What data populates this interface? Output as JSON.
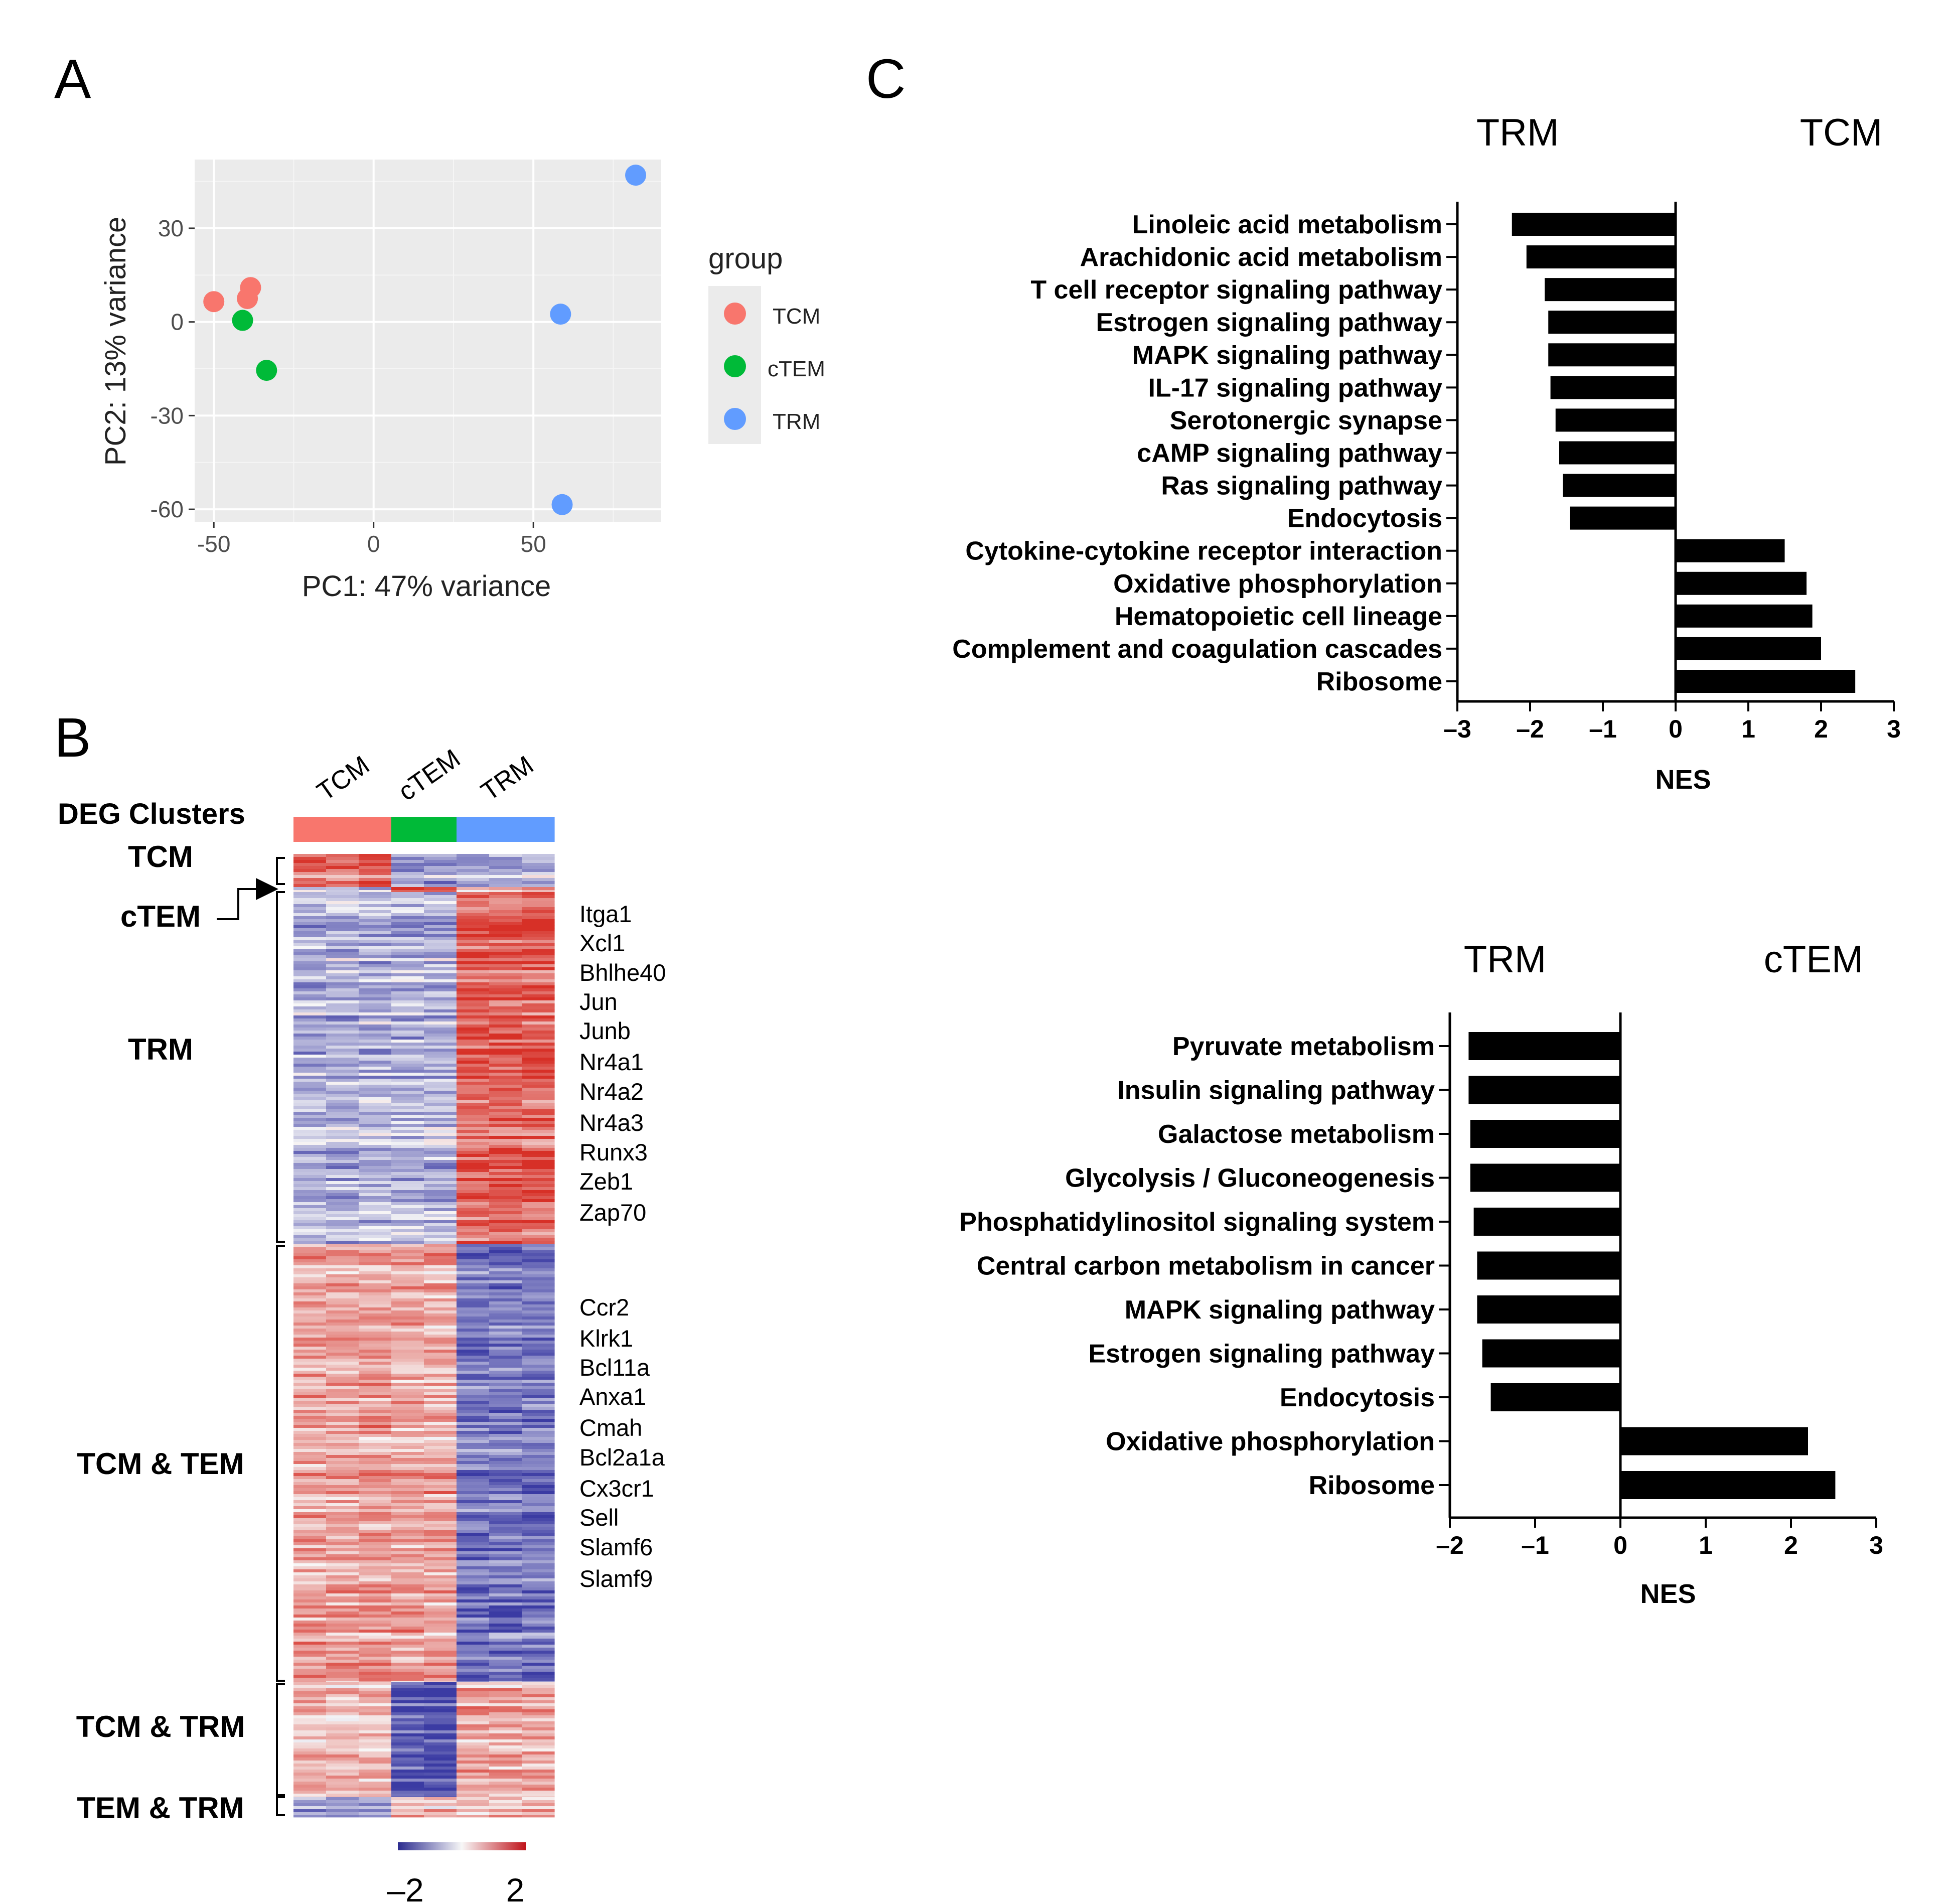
{
  "panels": {
    "a": "A",
    "b": "B",
    "c": "C"
  },
  "colors": {
    "tcm": "#F8766D",
    "ctem": "#00BA38",
    "trm": "#619CFF",
    "bar": "#000000",
    "panel_bg": "#EBEBEB",
    "heat_low": "#3B3BA3",
    "heat_high": "#D7301F"
  },
  "chart_data": [
    {
      "id": "pca",
      "type": "scatter",
      "xlabel": "PC1: 47% variance",
      "ylabel": "PC2: 13% variance",
      "xlim": [
        -56,
        90
      ],
      "ylim": [
        -64,
        52
      ],
      "xticks": [
        -50,
        0,
        50
      ],
      "yticks": [
        30,
        0,
        -30,
        -60
      ],
      "legend": {
        "title": "group",
        "position": "right",
        "entries": [
          "TCM",
          "cTEM",
          "TRM"
        ]
      },
      "series": [
        {
          "name": "TCM",
          "color": "#F8766D",
          "points": [
            [
              -50,
              6.5
            ],
            [
              -38.5,
              11
            ],
            [
              -39.5,
              7.5
            ]
          ]
        },
        {
          "name": "cTEM",
          "color": "#00BA38",
          "points": [
            [
              -41,
              0.5
            ],
            [
              -33.5,
              -15.5
            ]
          ]
        },
        {
          "name": "TRM",
          "color": "#619CFF",
          "points": [
            [
              82,
              47
            ],
            [
              58.5,
              2.5
            ],
            [
              59,
              -58.5
            ]
          ]
        }
      ]
    },
    {
      "id": "heatmap",
      "type": "heatmap",
      "row_label_title": "DEG Clusters",
      "column_groups": [
        {
          "name": "TCM",
          "color": "#F8766D",
          "n": 3
        },
        {
          "name": "cTEM",
          "color": "#00BA38",
          "n": 2
        },
        {
          "name": "TRM",
          "color": "#619CFF",
          "n": 3
        }
      ],
      "clusters": [
        {
          "name": "TCM",
          "genes": []
        },
        {
          "name": "cTEM",
          "genes": []
        },
        {
          "name": "TRM",
          "genes": [
            "Itga1",
            "Xcl1",
            "Bhlhe40",
            "Jun",
            "Junb",
            "Nr4a1",
            "Nr4a2",
            "Nr4a3",
            "Runx3",
            "Zeb1",
            "Zap70"
          ]
        },
        {
          "name": "TCM & TEM",
          "genes": [
            "Ccr2",
            "Klrk1",
            "Bcl11a",
            "Anxa1",
            "Cmah",
            "Bcl2a1a",
            "Cx3cr1",
            "Sell",
            "Slamf6",
            "Slamf9"
          ]
        },
        {
          "name": "TCM & TRM",
          "genes": []
        },
        {
          "name": "TEM & TRM",
          "genes": []
        }
      ],
      "colorscale": {
        "min": -2,
        "max": 2,
        "min_label": "–2",
        "max_label": "2"
      }
    },
    {
      "id": "gsea_trm_vs_tcm",
      "type": "bar",
      "orientation": "horizontal",
      "left_label": "TRM",
      "right_label": "TCM",
      "xlabel": "NES",
      "xlim": [
        -3,
        3
      ],
      "xticks": [
        -3,
        -2,
        -1,
        0,
        1,
        2,
        3
      ],
      "xtick_labels": [
        "–3",
        "–2",
        "–1",
        "0",
        "1",
        "2",
        "3"
      ],
      "categories": [
        "Linoleic acid metabolism",
        "Arachidonic acid metabolism",
        "T cell receptor signaling pathway",
        "Estrogen signaling pathway",
        "MAPK signaling pathway",
        "IL-17 signaling pathway",
        "Serotonergic synapse",
        "cAMP signaling pathway",
        "Ras signaling pathway",
        "Endocytosis",
        "Cytokine-cytokine receptor interaction",
        "Oxidative phosphorylation",
        "Hematopoietic cell lineage",
        "Complement and coagulation cascades",
        "Ribosome"
      ],
      "values": [
        -2.25,
        -2.05,
        -1.8,
        -1.75,
        -1.75,
        -1.72,
        -1.65,
        -1.6,
        -1.55,
        -1.45,
        1.5,
        1.8,
        1.88,
        2.0,
        2.47
      ]
    },
    {
      "id": "gsea_trm_vs_ctem",
      "type": "bar",
      "orientation": "horizontal",
      "left_label": "TRM",
      "right_label": "cTEM",
      "xlabel": "NES",
      "xlim": [
        -2,
        3
      ],
      "xticks": [
        -2,
        -1,
        0,
        1,
        2,
        3
      ],
      "xtick_labels": [
        "–2",
        "–1",
        "0",
        "1",
        "2",
        "3"
      ],
      "categories": [
        "Pyruvate metabolism",
        "Insulin signaling pathway",
        "Galactose metabolism",
        "Glycolysis / Gluconeogenesis",
        "Phosphatidylinositol signaling system",
        "Central carbon metabolism in cancer",
        "MAPK signaling pathway",
        "Estrogen signaling pathway",
        "Endocytosis",
        "Oxidative phosphorylation",
        "Ribosome"
      ],
      "values": [
        -1.78,
        -1.78,
        -1.76,
        -1.76,
        -1.72,
        -1.68,
        -1.68,
        -1.62,
        -1.52,
        2.2,
        2.52
      ]
    }
  ]
}
